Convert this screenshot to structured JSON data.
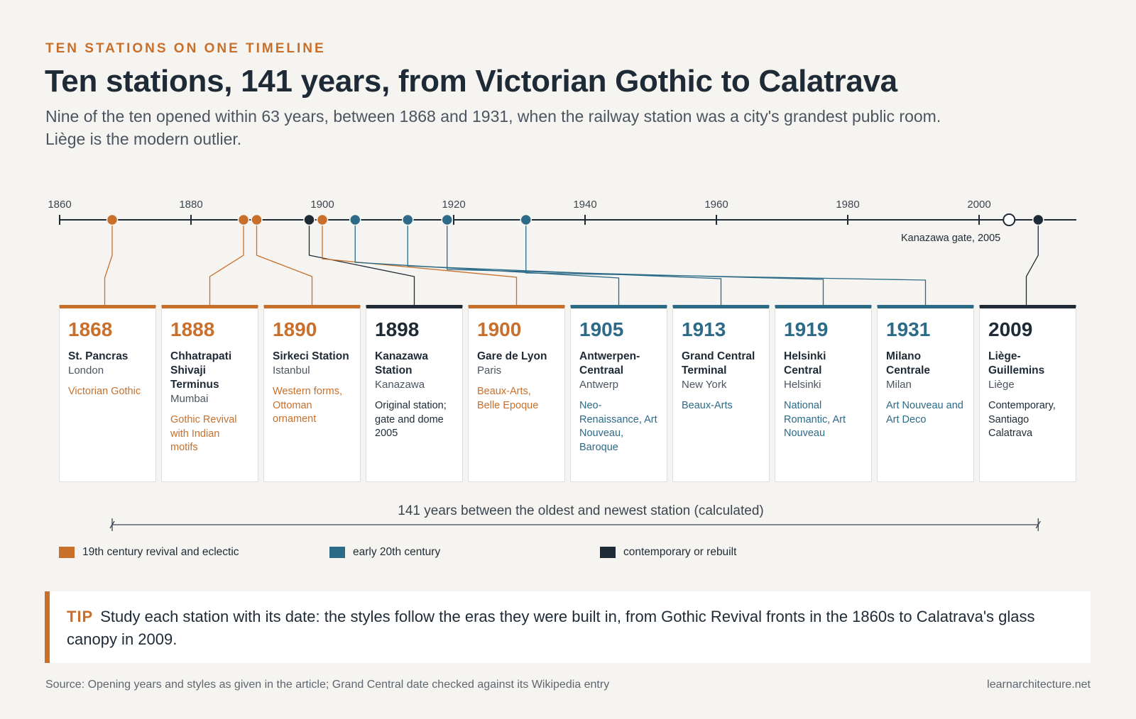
{
  "header": {
    "eyebrow": "TEN STATIONS ON ONE TIMELINE",
    "title": "Ten stations, 141 years, from Victorian Gothic to Calatrava",
    "subtitle": "Nine of the ten opened within 63 years, between 1868 and 1931, when the railway station was a city's grandest public room. Liège is the modern outlier."
  },
  "colors": {
    "revival": "#c8702b",
    "early20": "#2c6a87",
    "contemporary": "#1e2a35",
    "axis": "#1e2a35",
    "background": "#f6f4f0"
  },
  "timeline": {
    "ticks": [
      1860,
      1880,
      1900,
      1920,
      1940,
      1960,
      1980,
      2000
    ],
    "start": 1860,
    "end": 2014,
    "extra_marker": {
      "year": 2005,
      "label": "Kanazawa gate, 2005"
    },
    "extra_event_year": 1898
  },
  "stations": [
    {
      "year": 1868,
      "name": "St. Pancras",
      "city": "London",
      "style": "Victorian Gothic",
      "group": "revival"
    },
    {
      "year": 1888,
      "name": "Chhatrapati Shivaji Terminus",
      "city": "Mumbai",
      "style": "Gothic Revival with Indian motifs",
      "group": "revival"
    },
    {
      "year": 1890,
      "name": "Sirkeci Station",
      "city": "Istanbul",
      "style": "Western forms, Ottoman ornament",
      "group": "revival"
    },
    {
      "year": 1898,
      "name": "Kanazawa Station",
      "city": "Kanazawa",
      "style": "Original station; gate and dome 2005",
      "group": "contemporary"
    },
    {
      "year": 1900,
      "name": "Gare de Lyon",
      "city": "Paris",
      "style": "Beaux-Arts, Belle Epoque",
      "group": "revival"
    },
    {
      "year": 1905,
      "name": "Antwerpen-Centraal",
      "city": "Antwerp",
      "style": "Neo-Renaissance, Art Nouveau, Baroque",
      "group": "early20"
    },
    {
      "year": 1913,
      "name": "Grand Central Terminal",
      "city": "New York",
      "style": "Beaux-Arts",
      "group": "early20"
    },
    {
      "year": 1919,
      "name": "Helsinki Central",
      "city": "Helsinki",
      "style": "National Romantic, Art Nouveau",
      "group": "early20"
    },
    {
      "year": 1931,
      "name": "Milano Centrale",
      "city": "Milan",
      "style": "Art Nouveau and Art Deco",
      "group": "early20"
    },
    {
      "year": 2009,
      "name": "Liège-Guillemins",
      "city": "Liège",
      "style": "Contemporary, Santiago Calatrava",
      "group": "contemporary"
    }
  ],
  "span": {
    "label": "141 years between the oldest and newest station (calculated)",
    "from": 1868,
    "to": 2009
  },
  "legend": {
    "revival": "19th century revival and eclectic",
    "early20": "early 20th century",
    "contemporary": "contemporary or rebuilt"
  },
  "tip": {
    "label": "TIP",
    "text": "Study each station with its date: the styles follow the eras they were built in, from Gothic Revival fronts in the 1860s to Calatrava's glass canopy in 2009."
  },
  "footer": {
    "source": "Source: Opening years and styles as given in the article; Grand Central date checked against its Wikipedia entry",
    "site": "learnarchitecture.net"
  }
}
